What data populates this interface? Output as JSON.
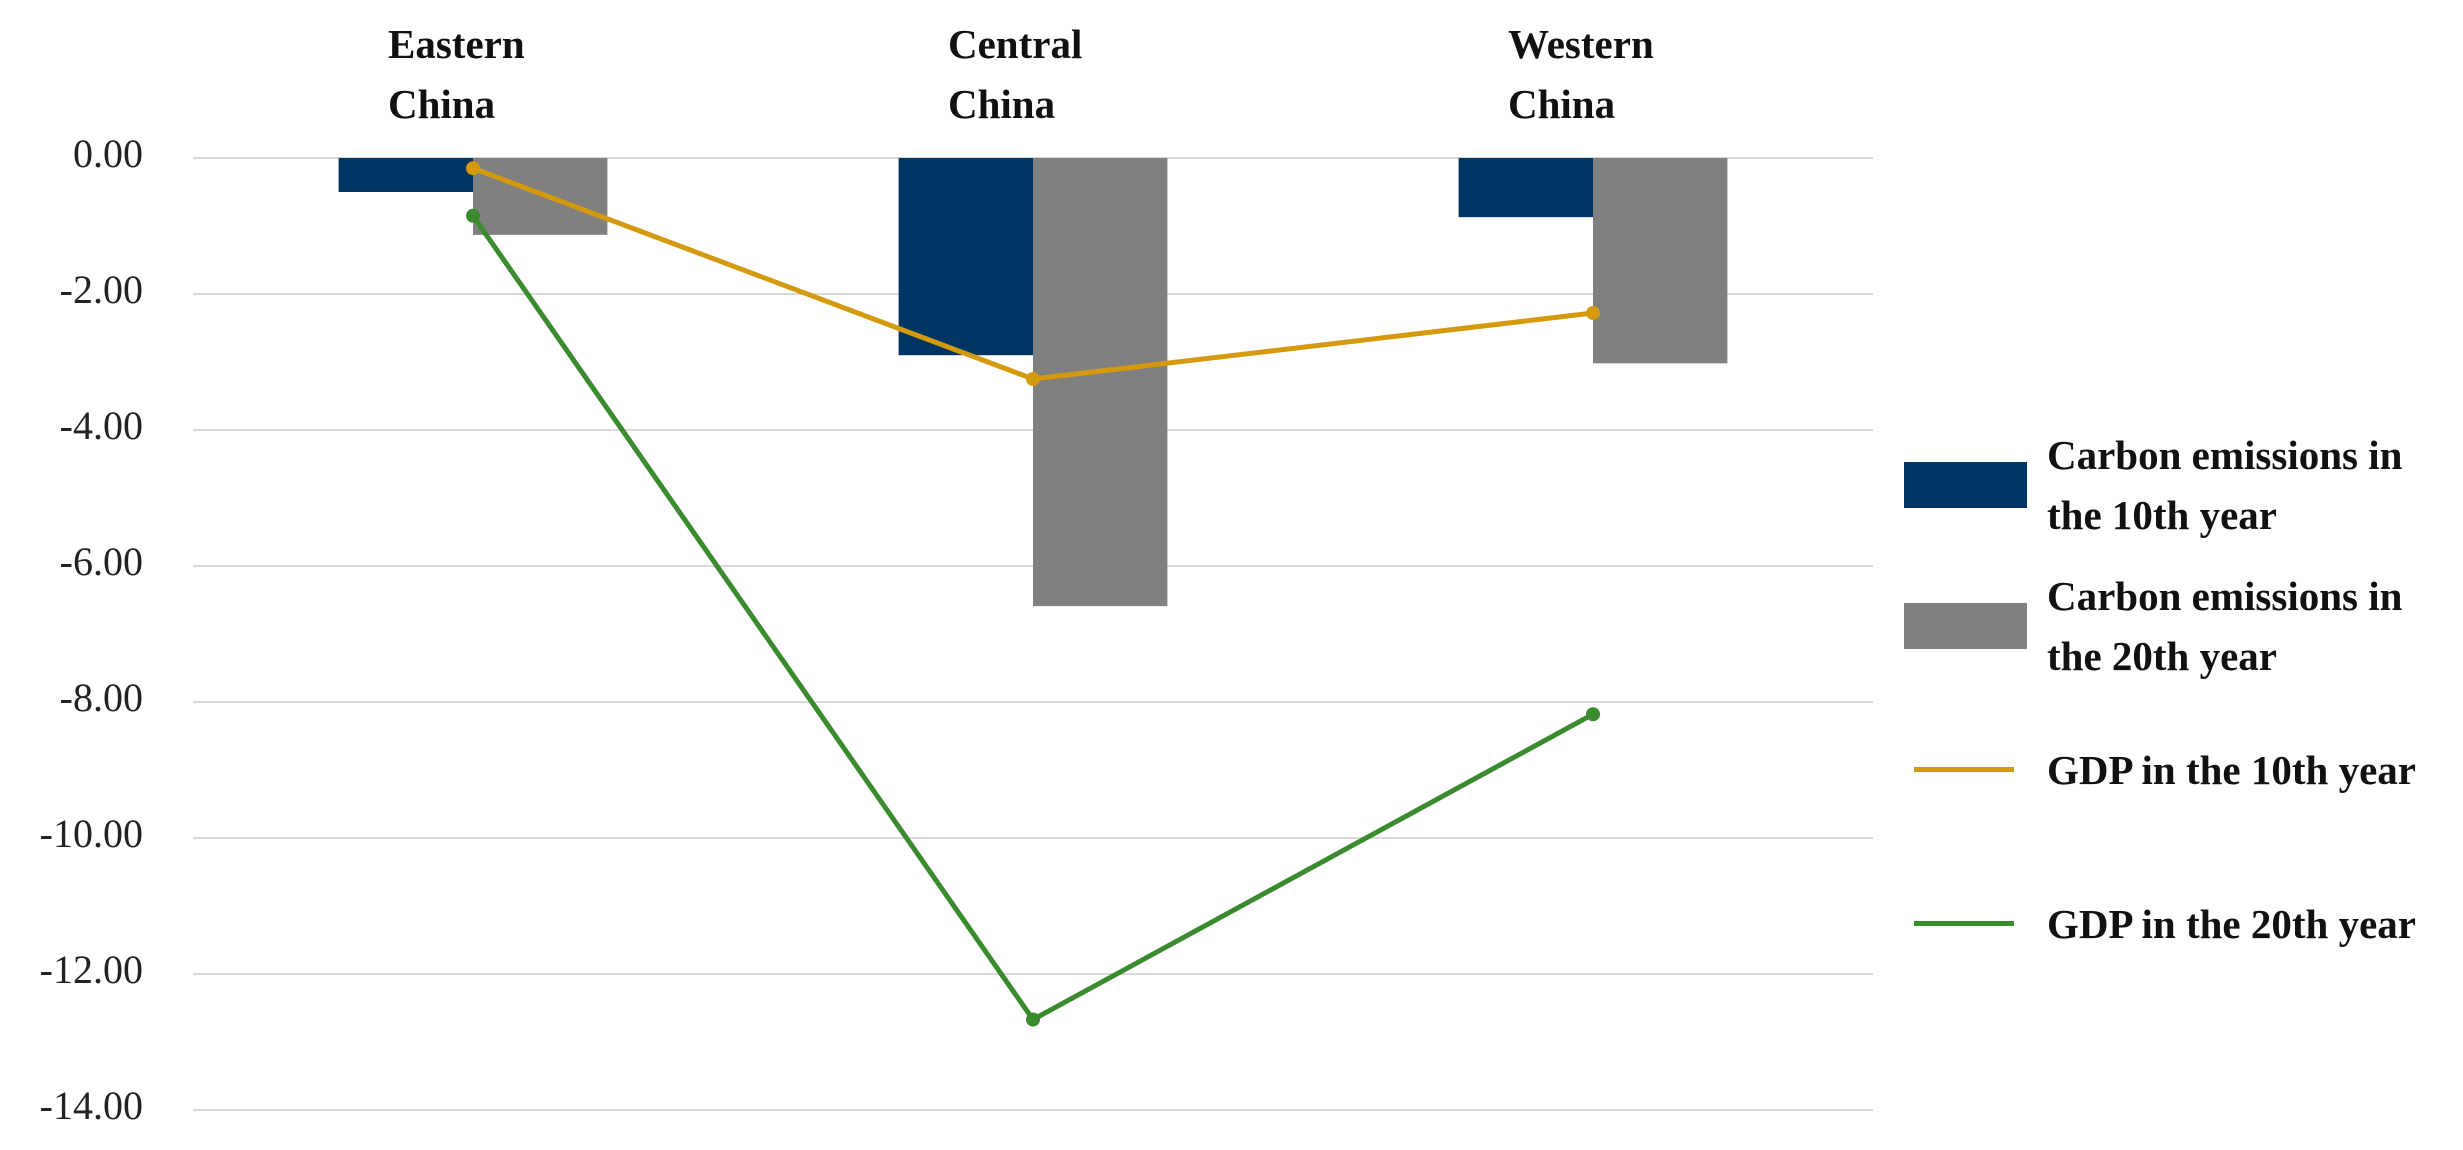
{
  "chart_data": {
    "type": "combo",
    "categories": [
      "Eastern China",
      "Central China",
      "Western China"
    ],
    "series": [
      {
        "name": "Carbon emissions in the 10th year",
        "type": "bar",
        "color": "#003462",
        "values": [
          -0.5,
          -2.9,
          -0.87
        ]
      },
      {
        "name": "Carbon emissions in the 20th year",
        "type": "bar",
        "color": "#808080",
        "values": [
          -1.13,
          -6.59,
          -3.02
        ]
      },
      {
        "name": "GDP in the 10th year",
        "type": "line",
        "color": "#d4990c",
        "values": [
          -0.15,
          -3.25,
          -2.28
        ]
      },
      {
        "name": "GDP in the 20th year",
        "type": "line",
        "color": "#3a8a2e",
        "values": [
          -0.85,
          -12.67,
          -8.18
        ]
      }
    ],
    "ylim": [
      -14,
      0
    ],
    "yticks": [
      {
        "value": 0,
        "label": "0.00"
      },
      {
        "value": -2,
        "label": "-2.00"
      },
      {
        "value": -4,
        "label": "-4.00"
      },
      {
        "value": -6,
        "label": "-6.00"
      },
      {
        "value": -8,
        "label": "-8.00"
      },
      {
        "value": -10,
        "label": "-10.00"
      },
      {
        "value": -12,
        "label": "-12.00"
      },
      {
        "value": -14,
        "label": "-14.00"
      }
    ],
    "grid": true,
    "legend": "right"
  }
}
